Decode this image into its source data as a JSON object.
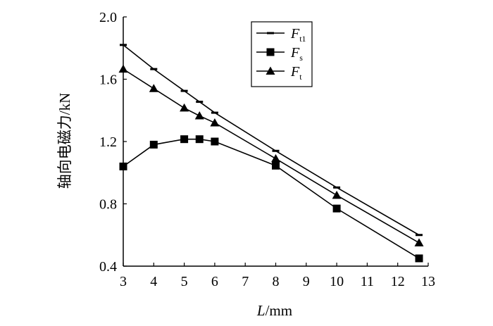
{
  "chart_data": {
    "type": "line",
    "xlabel_var": "L",
    "xlabel_unit": "/mm",
    "ylabel": "轴向电磁力/kN",
    "xlim": [
      3,
      13
    ],
    "ylim": [
      0.4,
      2.0
    ],
    "x_ticks": [
      3,
      4,
      5,
      6,
      7,
      8,
      9,
      10,
      11,
      12,
      13
    ],
    "y_ticks": [
      "0.4",
      "0.8",
      "1.2",
      "1.6",
      "2.0"
    ],
    "grid": false,
    "legend_position": "top-right",
    "series": [
      {
        "name": "F",
        "subscript": "t1",
        "marker": "dash",
        "x": [
          3,
          4,
          5,
          5.5,
          6,
          8,
          10,
          12.7
        ],
        "y": [
          1.82,
          1.665,
          1.525,
          1.455,
          1.385,
          1.14,
          0.905,
          0.6
        ]
      },
      {
        "name": "F",
        "subscript": "s",
        "marker": "square",
        "x": [
          3,
          4,
          5,
          5.5,
          6,
          8,
          10,
          12.7
        ],
        "y": [
          1.04,
          1.18,
          1.215,
          1.215,
          1.2,
          1.045,
          0.77,
          0.45
        ]
      },
      {
        "name": "F",
        "subscript": "t",
        "marker": "triangle",
        "x": [
          3,
          4,
          5,
          5.5,
          6,
          8,
          10,
          12.7
        ],
        "y": [
          1.665,
          1.54,
          1.415,
          1.365,
          1.32,
          1.09,
          0.855,
          0.55
        ]
      }
    ]
  }
}
